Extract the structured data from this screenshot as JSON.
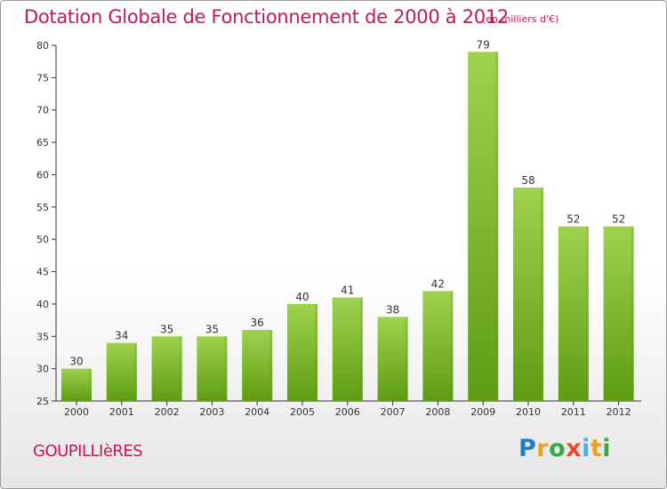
{
  "title": "Dotation Globale de Fonctionnement de 2000 à 2012",
  "unit": "(en milliers d'€)",
  "commune": "GOUPILLIèRES",
  "logo": {
    "letters": [
      "P",
      "r",
      "o",
      "x",
      "i",
      "t",
      "i"
    ]
  },
  "colors": {
    "title": "#c2185b",
    "bar_light": "#9fd24e",
    "bar_dark": "#5e9c13",
    "axis": "#333333"
  },
  "chart_data": {
    "type": "bar",
    "title": "Dotation Globale de Fonctionnement de 2000 à 2012",
    "xlabel": "",
    "ylabel": "",
    "categories": [
      "2000",
      "2001",
      "2002",
      "2003",
      "2004",
      "2005",
      "2006",
      "2007",
      "2008",
      "2009",
      "2010",
      "2011",
      "2012"
    ],
    "values": [
      30,
      34,
      35,
      35,
      36,
      40,
      41,
      38,
      42,
      79,
      58,
      52,
      52
    ],
    "value_labels": [
      "30",
      "34",
      "35",
      "35",
      "36",
      "40",
      "41",
      "38",
      "42",
      "79",
      "58",
      "52",
      "52"
    ],
    "ylim": [
      25,
      80
    ],
    "yticks": [
      25,
      30,
      35,
      40,
      45,
      50,
      55,
      60,
      65,
      70,
      75,
      80
    ],
    "grid": false,
    "legend": "none"
  }
}
